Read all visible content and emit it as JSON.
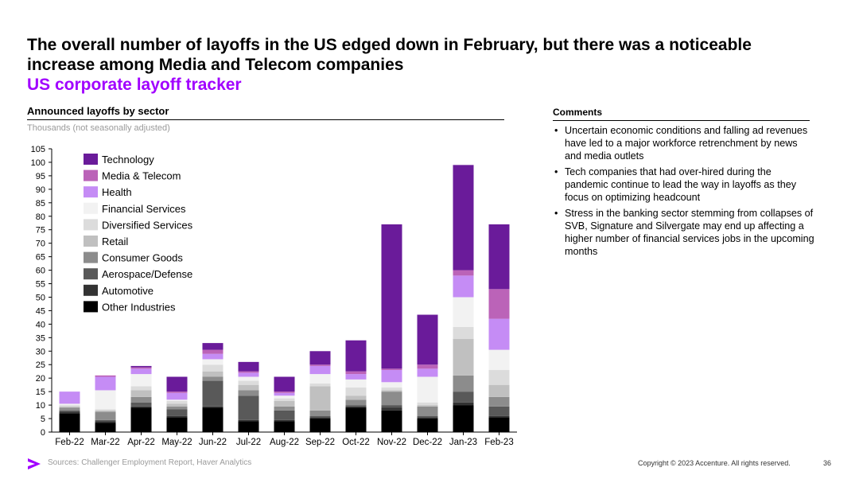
{
  "slide": {
    "title": "The overall number of layoffs in the US edged down in February, but there was a noticeable increase among Media and Telecom companies",
    "subtitle": "US corporate layoff tracker",
    "chart_heading": "Announced layoffs by sector",
    "chart_units": "Thousands (not seasonally adjusted)",
    "comments_heading": "Comments",
    "comments": [
      "Uncertain economic conditions and falling ad revenues have led to a major workforce retrenchment by news and media outlets",
      "Tech companies that had over-hired during the pandemic continue to lead the way in layoffs as they focus on optimizing headcount",
      "Stress in the banking sector stemming from collapses of SVB, Signature and Silvergate may end up affecting a higher number of financial services jobs in the upcoming months"
    ],
    "sources": "Sources: Challenger Employment Report, Haver Analytics",
    "copyright": "Copyright © 2023 Accenture. All rights reserved.",
    "page_number": "36",
    "accent_color": "#a100ff",
    "logo_icon": "accenture-greater-than-icon"
  },
  "chart_data": {
    "type": "bar",
    "stacked": true,
    "ylabel": "Thousands (not seasonally adjusted)",
    "ylim": [
      0,
      105
    ],
    "ytick_step": 5,
    "grid": false,
    "legend_position": "top-left",
    "categories": [
      "Feb-22",
      "Mar-22",
      "Apr-22",
      "May-22",
      "Jun-22",
      "Jul-22",
      "Aug-22",
      "Sep-22",
      "Oct-22",
      "Nov-22",
      "Dec-22",
      "Jan-23",
      "Feb-23"
    ],
    "series": [
      {
        "name": "Other Industries",
        "color": "#000000",
        "values": [
          7,
          3.5,
          9,
          5.5,
          9,
          4,
          4,
          5,
          9,
          8,
          5,
          10,
          5.5
        ]
      },
      {
        "name": "Automotive",
        "color": "#333333",
        "values": [
          0.5,
          0.5,
          0.5,
          0.5,
          0.5,
          0.5,
          0.5,
          0.5,
          0.5,
          1,
          0.5,
          1,
          0.5
        ]
      },
      {
        "name": "Aerospace/Defense",
        "color": "#595959",
        "values": [
          0.5,
          0.5,
          1.5,
          2.5,
          9.5,
          9,
          3.5,
          0.5,
          0.5,
          1,
          0.5,
          4,
          3.5
        ]
      },
      {
        "name": "Consumer Goods",
        "color": "#8c8c8c",
        "values": [
          1,
          3,
          2,
          1,
          1.5,
          2,
          1.5,
          2,
          2,
          5,
          3.5,
          6,
          3.5
        ]
      },
      {
        "name": "Retail",
        "color": "#c0c0c0",
        "values": [
          0.5,
          0.5,
          2.5,
          1,
          2,
          2,
          2,
          9,
          1.5,
          0.5,
          0.5,
          13.5,
          4.5
        ]
      },
      {
        "name": "Diversified Services",
        "color": "#dcdcdc",
        "values": [
          0.5,
          0.5,
          1.5,
          1,
          2.5,
          1.5,
          1,
          1,
          3,
          1,
          1,
          4.5,
          5.5
        ]
      },
      {
        "name": "Financial Services",
        "color": "#f2f2f2",
        "values": [
          0.5,
          7,
          4.5,
          0.5,
          2,
          1.5,
          1,
          3.5,
          3,
          2,
          9.5,
          11,
          7.5
        ]
      },
      {
        "name": "Health",
        "color": "#c58cf5",
        "values": [
          4.5,
          5,
          2,
          2.5,
          2,
          1.5,
          1,
          3,
          2,
          4.5,
          3,
          8,
          11.5
        ]
      },
      {
        "name": "Media & Telecom",
        "color": "#bb63b8",
        "values": [
          0,
          0.5,
          0.5,
          0.5,
          1.5,
          0.5,
          0.5,
          0.5,
          1,
          0.5,
          1.5,
          2,
          11
        ]
      },
      {
        "name": "Technology",
        "color": "#6a1b9a",
        "values": [
          0,
          0,
          0.5,
          5.5,
          2.5,
          3.5,
          5.5,
          5,
          11.5,
          53.5,
          18.5,
          39,
          24
        ]
      }
    ],
    "legend_order": [
      "Technology",
      "Media & Telecom",
      "Health",
      "Financial Services",
      "Diversified Services",
      "Retail",
      "Consumer Goods",
      "Aerospace/Defense",
      "Automotive",
      "Other Industries"
    ]
  }
}
